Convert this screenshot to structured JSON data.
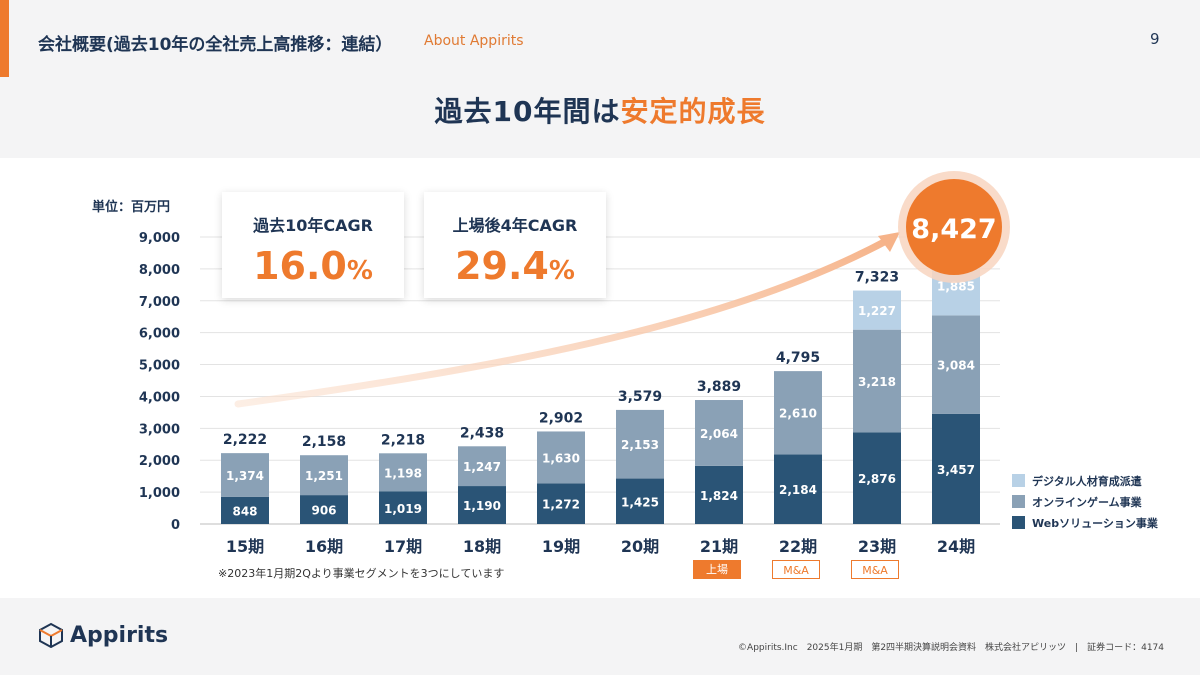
{
  "header": {
    "title": "会社概要(過去10年の全社売上高推移：連結）",
    "subtitle": "About Appirits",
    "page_number": "9"
  },
  "headline": {
    "part1": "過去10年間は",
    "part2": "安定的成長"
  },
  "unit_label": "単位：百万円",
  "kpis": [
    {
      "label": "過去10年CAGR",
      "value": "16.0",
      "suffix": "%"
    },
    {
      "label": "上場後4年CAGR",
      "value": "29.4",
      "suffix": "%"
    }
  ],
  "highlight_total": "8,427",
  "note": "※2023年1月期2Qより事業セグメントを3つにしています",
  "tags": [
    {
      "label": "上場",
      "under": "21期",
      "style": "solid"
    },
    {
      "label": "M&A",
      "under": "22期",
      "style": "outline"
    },
    {
      "label": "M&A",
      "under": "23期",
      "style": "outline"
    }
  ],
  "legend": [
    {
      "label": "デジタル人材育成派遣",
      "color": "#b8d1e6"
    },
    {
      "label": "オンラインゲーム事業",
      "color": "#8aa1b6"
    },
    {
      "label": "Webソリューション事業",
      "color": "#2a5476"
    }
  ],
  "logo": {
    "name": "Appirits"
  },
  "footer": "©Appirits.Inc　2025年1月期　第2四半期決算説明会資料　株式会社アピリッツ　|　証券コード：4174",
  "colors": {
    "accent": "#ee7a2d",
    "navy": "#1f3554",
    "web": "#2a5476",
    "game": "#8aa1b6",
    "digital": "#b8d1e6"
  },
  "chart_data": {
    "type": "bar",
    "stacked": true,
    "categories": [
      "15期",
      "16期",
      "17期",
      "18期",
      "19期",
      "20期",
      "21期",
      "22期",
      "23期",
      "24期"
    ],
    "series": [
      {
        "name": "Webソリューション事業",
        "values": [
          848,
          906,
          1019,
          1190,
          1272,
          1425,
          1824,
          2184,
          2876,
          3457
        ],
        "labels": [
          "848",
          "906",
          "1,019",
          "1,190",
          "1,272",
          "1,425",
          "1,824",
          "2,184",
          "2,876",
          "3,457"
        ]
      },
      {
        "name": "オンラインゲーム事業",
        "values": [
          1374,
          1251,
          1198,
          1247,
          1630,
          2153,
          2064,
          2610,
          3218,
          3084
        ],
        "labels": [
          "1,374",
          "1,251",
          "1,198",
          "1,247",
          "1,630",
          "2,153",
          "2,064",
          "2,610",
          "3,218",
          "3,084"
        ]
      },
      {
        "name": "デジタル人材育成派遣",
        "values": [
          0,
          0,
          0,
          0,
          0,
          0,
          0,
          0,
          1227,
          1885
        ],
        "labels": [
          "",
          "",
          "",
          "",
          "",
          "",
          "",
          "",
          "1,227",
          "1,885"
        ]
      }
    ],
    "totals": [
      2222,
      2158,
      2218,
      2438,
      2902,
      3579,
      3889,
      4795,
      7323,
      8427
    ],
    "total_labels": [
      "2,222",
      "2,158",
      "2,218",
      "2,438",
      "2,902",
      "3,579",
      "3,889",
      "4,795",
      "7,323",
      "8,427"
    ],
    "ylim": [
      0,
      9000
    ],
    "yticks": [
      0,
      1000,
      2000,
      3000,
      4000,
      5000,
      6000,
      7000,
      8000,
      9000
    ],
    "ytick_labels": [
      "0",
      "1,000",
      "2,000",
      "3,000",
      "4,000",
      "5,000",
      "6,000",
      "7,000",
      "8,000",
      "9,000"
    ],
    "ylabel": "単位：百万円",
    "legend_position": "bottom-right"
  }
}
